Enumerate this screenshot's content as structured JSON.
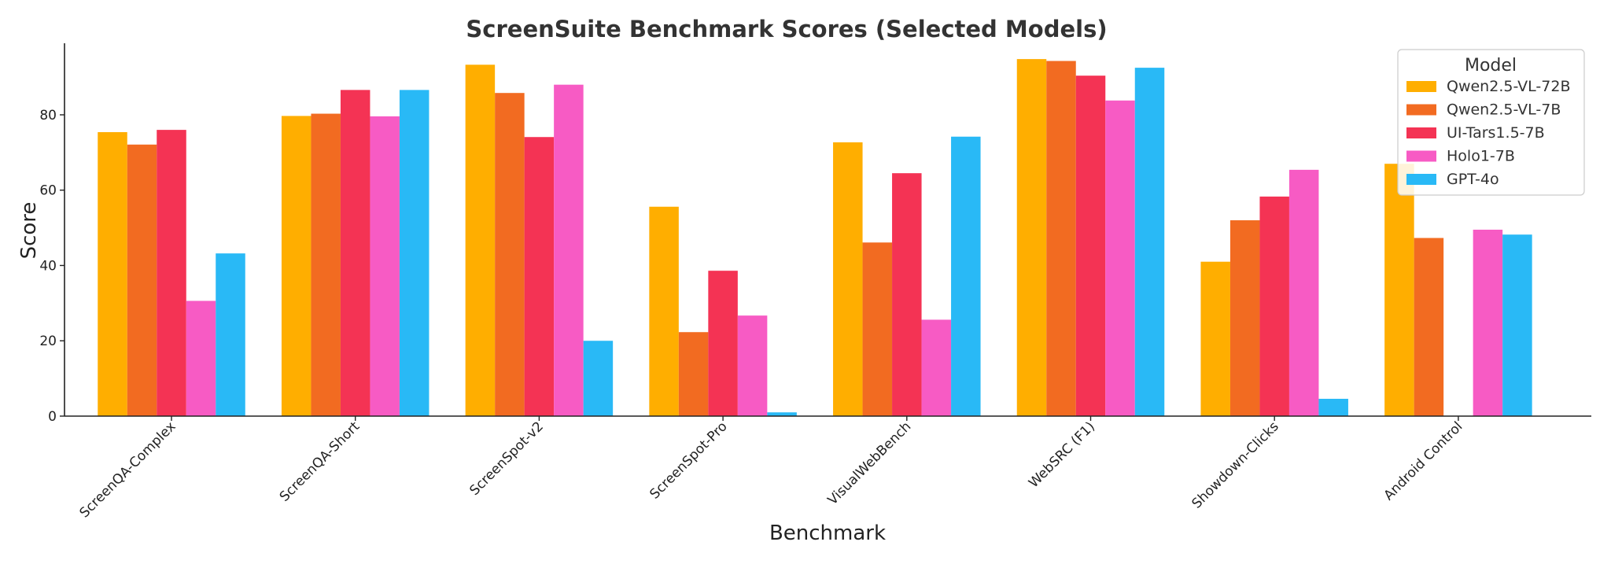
{
  "chart_data": {
    "type": "bar",
    "title": "ScreenSuite Benchmark Scores (Selected Models)",
    "xlabel": "Benchmark",
    "ylabel": "Score",
    "ylim": [
      0,
      99
    ],
    "yticks": [
      0,
      20,
      40,
      60,
      80
    ],
    "grid": false,
    "legend": {
      "title": "Model",
      "placement": "top-right"
    },
    "categories": [
      "ScreenQA-Complex",
      "ScreenQA-Short",
      "ScreenSpot-v2",
      "ScreenSpot-Pro",
      "VisualWebBench",
      "WebSRC (F1)",
      "Showdown-Clicks",
      "Android Control"
    ],
    "series": [
      {
        "name": "Qwen2.5-VL-72B",
        "color": "#FFAE00",
        "values": [
          75.4,
          79.7,
          93.3,
          55.6,
          72.7,
          94.8,
          41.0,
          67.0
        ]
      },
      {
        "name": "Qwen2.5-VL-7B",
        "color": "#F26B21",
        "values": [
          72.1,
          80.3,
          85.8,
          22.3,
          46.1,
          94.3,
          52.0,
          47.3
        ]
      },
      {
        "name": "UI-Tars1.5-7B",
        "color": "#F43354",
        "values": [
          76.0,
          86.6,
          74.1,
          38.6,
          64.5,
          90.4,
          58.3,
          0.0
        ]
      },
      {
        "name": "Holo1-7B",
        "color": "#F75BC4",
        "values": [
          30.6,
          79.6,
          88.0,
          26.7,
          25.6,
          83.8,
          65.4,
          49.5
        ]
      },
      {
        "name": "GPT-4o",
        "color": "#29B9F6",
        "values": [
          43.2,
          86.6,
          20.0,
          1.0,
          74.2,
          92.5,
          4.6,
          48.2
        ]
      }
    ]
  }
}
